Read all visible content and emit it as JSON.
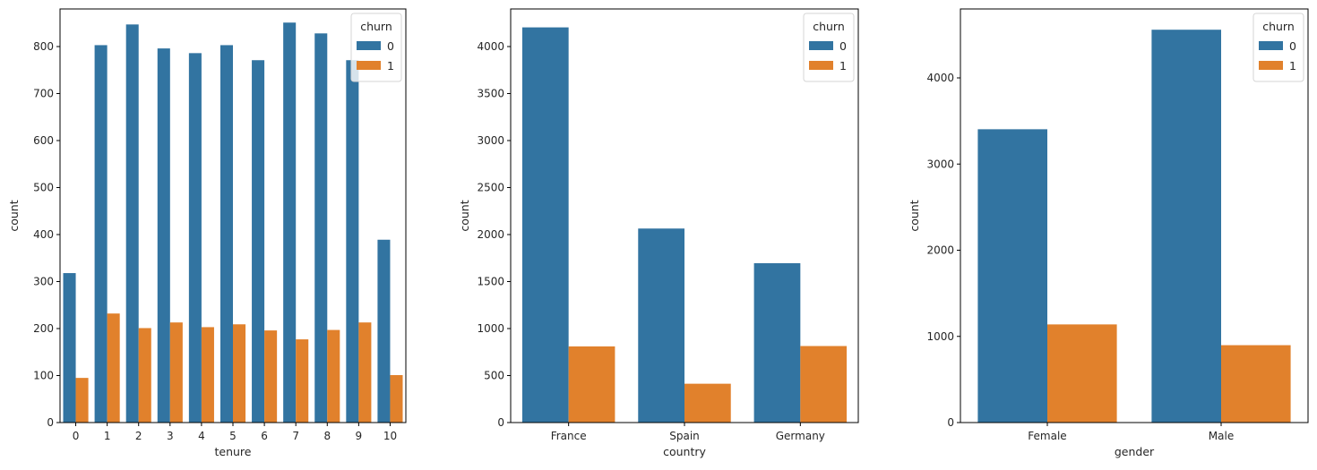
{
  "colors": {
    "churn_0": "#3274a1",
    "churn_1": "#e1812c"
  },
  "chart_data": [
    {
      "type": "bar",
      "xlabel": "tenure",
      "ylabel": "count",
      "ylim": [
        0,
        880
      ],
      "yticks": [
        0,
        100,
        200,
        300,
        400,
        500,
        600,
        700,
        800
      ],
      "categories": [
        "0",
        "1",
        "2",
        "3",
        "4",
        "5",
        "6",
        "7",
        "8",
        "9",
        "10"
      ],
      "legend": {
        "title": "churn",
        "position": "top-right"
      },
      "series": [
        {
          "name": "0",
          "values": [
            318,
            803,
            847,
            796,
            786,
            803,
            771,
            851,
            828,
            771,
            389
          ]
        },
        {
          "name": "1",
          "values": [
            95,
            232,
            201,
            213,
            203,
            209,
            196,
            177,
            197,
            213,
            101
          ]
        }
      ]
    },
    {
      "type": "bar",
      "xlabel": "country",
      "ylabel": "count",
      "ylim": [
        0,
        4400
      ],
      "yticks": [
        0,
        500,
        1000,
        1500,
        2000,
        2500,
        3000,
        3500,
        4000
      ],
      "categories": [
        "France",
        "Spain",
        "Germany"
      ],
      "legend": {
        "title": "churn",
        "position": "top-right"
      },
      "series": [
        {
          "name": "0",
          "values": [
            4204,
            2064,
            1695
          ]
        },
        {
          "name": "1",
          "values": [
            810,
            413,
            814
          ]
        }
      ]
    },
    {
      "type": "bar",
      "xlabel": "gender",
      "ylabel": "count",
      "ylim": [
        0,
        4800
      ],
      "yticks": [
        0,
        1000,
        2000,
        3000,
        4000
      ],
      "categories": [
        "Female",
        "Male"
      ],
      "legend": {
        "title": "churn",
        "position": "top-right"
      },
      "series": [
        {
          "name": "0",
          "values": [
            3404,
            4559
          ]
        },
        {
          "name": "1",
          "values": [
            1139,
            898
          ]
        }
      ]
    }
  ]
}
